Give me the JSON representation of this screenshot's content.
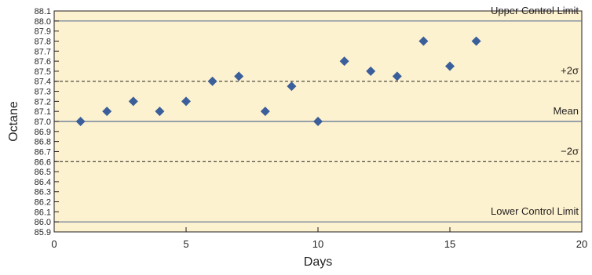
{
  "chart_data": {
    "type": "scatter",
    "title": "",
    "xlabel": "Days",
    "ylabel": "Octane",
    "xlim": [
      0,
      20
    ],
    "ylim": [
      85.9,
      88.1
    ],
    "x_ticks": [
      "0",
      "5",
      "10",
      "15",
      "20"
    ],
    "y_ticks": [
      "88.1",
      "88.0",
      "87.9",
      "87.8",
      "87.7",
      "87.6",
      "87.5",
      "87.4",
      "87.3",
      "87.2",
      "87.1",
      "87.0",
      "86.9",
      "86.8",
      "86.7",
      "86.6",
      "86.5",
      "86.4",
      "86.3",
      "86.2",
      "86.1",
      "86.0",
      "85.9"
    ],
    "grid": false,
    "series": [
      {
        "marker": "diamond",
        "color": "#3b5f9a",
        "x": [
          1,
          2,
          3,
          4,
          5,
          6,
          7,
          8,
          9,
          10,
          11,
          12,
          13,
          14,
          15,
          16
        ],
        "y": [
          87.0,
          87.1,
          87.2,
          87.1,
          87.2,
          87.4,
          87.45,
          87.1,
          87.35,
          87.0,
          87.6,
          87.5,
          87.45,
          87.8,
          87.55,
          87.8
        ]
      }
    ],
    "reference_lines": [
      {
        "label": "Upper Control Limit",
        "y": 88.0,
        "style": "solid"
      },
      {
        "label": "+2σ",
        "y": 87.4,
        "style": "dashed"
      },
      {
        "label": "Mean",
        "y": 87.0,
        "style": "solid"
      },
      {
        "label": "−2σ",
        "y": 86.6,
        "style": "dashed"
      },
      {
        "label": "Lower Control Limit",
        "y": 86.0,
        "style": "solid"
      }
    ],
    "colors": {
      "plot_background": "#fdf2cf",
      "reference_line": "#5a6f93",
      "axis": "#231f20"
    }
  }
}
